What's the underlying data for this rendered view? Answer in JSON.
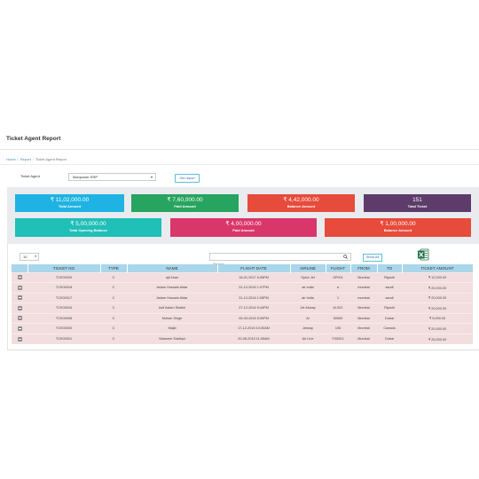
{
  "page": {
    "title": "Ticket Agent Report",
    "breadcrumb": [
      "Home",
      "Report",
      "Ticket Agent Report"
    ]
  },
  "filter": {
    "label": "Ticket Agent",
    "selected": "Manpower ERP",
    "button": "Get report"
  },
  "stats": [
    {
      "value": "₹ 11,02,000.00",
      "label": "Total Amount",
      "color": "#1eb3e2"
    },
    {
      "value": "₹ 7,60,000.00",
      "label": "Paid Amount",
      "color": "#27a45f"
    },
    {
      "value": "₹ 4,42,000.00",
      "label": "Balance Amount",
      "color": "#e64b3b"
    },
    {
      "value": "151",
      "label": "Total Ticket",
      "color": "#5d3b6a"
    },
    {
      "value": "₹ 5,00,000.00",
      "label": "Total Opening Balance",
      "color": "#20bfb8"
    },
    {
      "value": "₹ 4,00,000.00",
      "label": "Paid Amount",
      "color": "#d9366b"
    },
    {
      "value": "₹ 1,00,000.00",
      "label": "Balance Amount",
      "color": "#e64b3b"
    }
  ],
  "table": {
    "page_size": "10",
    "search_placeholder": "Search",
    "show_all": "Show All",
    "columns": [
      "",
      "TICKET NO",
      "TYPE",
      "NAME",
      "FLIGHT DATE",
      "AIRLINE",
      "FLIGHT",
      "FROM",
      "TO",
      "TICKET AMOUNT"
    ],
    "rows": [
      {
        "ticket_no": "TCK00029",
        "type": "C",
        "name": "ajit khan",
        "date": "18-01-2017 6:05PM",
        "airline": "Spice Jet",
        "flight": "SP001",
        "from": "Mumbai",
        "to": "Riyadh",
        "amount": "₹ 12,000.00"
      },
      {
        "ticket_no": "TCK00018",
        "type": "C",
        "name": "Aslam Hussain Aldar",
        "date": "31-12-2016 1:07PM",
        "airline": "air india",
        "flight": "a",
        "from": "mumbai",
        "to": "saudi",
        "amount": "₹ 20,000.00"
      },
      {
        "ticket_no": "TCK00017",
        "type": "C",
        "name": "Aslam Hussain Aldar",
        "date": "31-12-2016 1:05PM",
        "airline": "air India",
        "flight": "1",
        "from": "mumbai",
        "to": "saudi",
        "amount": "₹ 20,000.00"
      },
      {
        "ticket_no": "TCK00016",
        "type": "C",
        "name": "Asif Aslam Shaikh",
        "date": "27-12-2016 5:44PM",
        "airline": "Jet Airway",
        "flight": "AI-921",
        "from": "Mumbai",
        "to": "Riyadh",
        "amount": "₹ 20,000.00"
      },
      {
        "ticket_no": "TCK00008",
        "type": "C",
        "name": "Mohan Singh",
        "date": "05-03-2016 5:00PM",
        "airline": "AI",
        "flight": "50505",
        "from": "Mumbai",
        "to": "Dubai",
        "amount": "₹ 5,000.00"
      },
      {
        "ticket_no": "TCK00003",
        "type": "C",
        "name": "Majid",
        "date": "17-12-2015 10:30AM",
        "airline": "Jetway",
        "flight": "105",
        "from": "Mumbai",
        "to": "Canada",
        "amount": "₹ 20,000.00"
      },
      {
        "ticket_no": "TCK00001",
        "type": "C",
        "name": "Waseem Siddiqui",
        "date": "20-08-2015 11:06AM",
        "airline": "Air Line",
        "flight": "F00001",
        "from": "Mumbai",
        "to": "Dubai",
        "amount": "₹ 25,000.00"
      }
    ]
  }
}
